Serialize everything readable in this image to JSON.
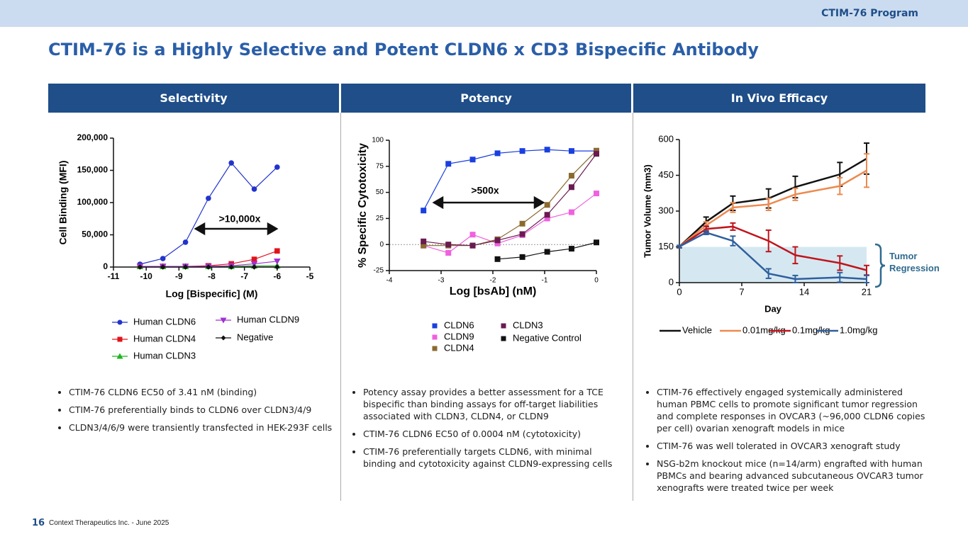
{
  "header": {
    "tag": "CTIM-76 Program",
    "title": "CTIM-76 is a Highly Selective and Potent CLDN6 x CD3 Bispecific Antibody"
  },
  "columns": [
    {
      "heading": "Selectivity",
      "bullets": [
        "CTIM-76 CLDN6 EC50 of 3.41 nM (binding)",
        "CTIM-76 preferentially binds to CLDN6 over CLDN3/4/9",
        "CLDN3/4/6/9 were transiently transfected in HEK-293F cells"
      ]
    },
    {
      "heading": "Potency",
      "bullets": [
        "Potency assay provides a better assessment for a TCE bispecific than binding assays for off-target liabilities associated with CLDN3, CLDN4, or CLDN9",
        "CTIM-76 CLDN6 EC50 of 0.0004 nM (cytotoxicity)",
        "CTIM-76 preferentially targets CLDN6, with minimal binding and cytotoxicity against CLDN9-expressing cells"
      ]
    },
    {
      "heading": "In Vivo Efficacy",
      "bullets": [
        "CTIM-76 effectively engaged systemically administered human PBMC cells to promote significant tumor regression and complete responses in OVCAR3 (~96,000 CLDN6 copies per cell) ovarian xenograft models in mice",
        "CTIM-76 was well tolerated in OVCAR3 xenograft study",
        "NSG-b2m knockout mice (n=14/arm) engrafted with human PBMCs and bearing advanced subcutaneous OVCAR3 tumor xenografts were treated twice per week"
      ]
    }
  ],
  "footer": {
    "page": 16,
    "text": "Context Therapeutics Inc. -  June 2025"
  },
  "chart_data": [
    {
      "type": "scatter",
      "xlabel": "Log [Bispecific] (M)",
      "ylabel": "Cell Binding (MFI)",
      "annotation": ">10,000x",
      "x": [
        -10.19,
        -9.49,
        -8.8,
        -8.1,
        -7.4,
        -6.7,
        -6
      ],
      "xlim": [
        -11,
        -5
      ],
      "xticks": [
        -11,
        -10,
        -9,
        -8,
        -7,
        -6,
        -5
      ],
      "ylim": [
        0,
        200000
      ],
      "yticks": [
        0,
        {
          "value": 50000,
          "label": "50,000"
        },
        {
          "value": 100000,
          "label": "100,000"
        },
        {
          "value": 150000,
          "label": "150,000"
        },
        {
          "value": 200000,
          "label": "200,000"
        }
      ],
      "series": [
        {
          "name": "Human CLDN6",
          "color": "#2233cc",
          "marker": "circle",
          "values": [
            4400,
            13200,
            38500,
            106600,
            161500,
            120900,
            155000
          ]
        },
        {
          "name": "Human CLDN4",
          "color": "#e3121b",
          "marker": "square",
          "values": [
            1000,
            1000,
            1000,
            2000,
            5000,
            12000,
            25000
          ]
        },
        {
          "name": "Human CLDN3",
          "color": "#1fb51f",
          "marker": "triangle",
          "values": [
            1000,
            1000,
            1000,
            1000,
            1000,
            2000,
            2000
          ]
        },
        {
          "name": "Human CLDN9",
          "color": "#a030d0",
          "marker": "triangle-down",
          "values": [
            1000,
            1000,
            1000,
            1000,
            2000,
            5000,
            9000
          ]
        },
        {
          "name": "Negative",
          "color": "#111111",
          "marker": "diamond",
          "values": [
            0,
            0,
            0,
            0,
            0,
            0,
            0
          ]
        }
      ]
    },
    {
      "type": "scatter",
      "xlabel": "Log [bsAb] (nM)",
      "ylabel": "% Specific Cytotoxicity",
      "annotation": ">500x",
      "zero_line": true,
      "x": [
        -3.34,
        -2.86,
        -2.39,
        -1.91,
        -1.43,
        -0.95,
        -0.48,
        0
      ],
      "xlim": [
        -4,
        0
      ],
      "xticks": [
        -4,
        -3,
        -2,
        -1,
        0
      ],
      "ylim": [
        -25,
        100
      ],
      "yticks": [
        -25,
        0,
        25,
        50,
        75,
        100
      ],
      "series": [
        {
          "name": "CLDN6",
          "color": "#1a3fe0",
          "marker": "square",
          "values": [
            32.6,
            77.4,
            81.5,
            87.5,
            89.7,
            91,
            89.7,
            89.7
          ]
        },
        {
          "name": "CLDN9",
          "color": "#f060e0",
          "marker": "square",
          "values": [
            -1,
            -8,
            9.5,
            1,
            9,
            25,
            31,
            49
          ]
        },
        {
          "name": "CLDN4",
          "color": "#8b6a2e",
          "marker": "square",
          "values": [
            -1,
            -1,
            -1,
            5,
            20,
            38,
            66,
            90
          ]
        },
        {
          "name": "CLDN3",
          "color": "#6a1a50",
          "marker": "square",
          "values": [
            3,
            0,
            -1,
            4,
            10,
            28.5,
            55,
            87
          ]
        },
        {
          "name": "Negative Control",
          "color": "#111111",
          "marker": "square",
          "values": [
            null,
            null,
            null,
            -14,
            -12,
            -7,
            -4,
            2
          ]
        }
      ]
    },
    {
      "type": "line",
      "xlabel": "Day",
      "ylabel": "Tumor Volume (mm3)",
      "annotation": "Tumor Regression",
      "band": [
        0,
        150
      ],
      "x": [
        0,
        3,
        6,
        10,
        13,
        18,
        21
      ],
      "xlim": [
        0,
        21
      ],
      "xticks": [
        0,
        7,
        14,
        21
      ],
      "ylim": [
        0,
        600
      ],
      "yticks": [
        0,
        150,
        300,
        450,
        600
      ],
      "series": [
        {
          "name": "Vehicle",
          "color": "#111111",
          "values": [
            151,
            255,
            333,
            353,
            401,
            454,
            520
          ],
          "errors": [
            5,
            20,
            30,
            40,
            45,
            50,
            65
          ]
        },
        {
          "name": "0.01mg/kg",
          "color": "#ec8a4f",
          "values": [
            151,
            240,
            315,
            328,
            370,
            405,
            470
          ],
          "errors": [
            5,
            15,
            20,
            25,
            25,
            35,
            70
          ]
        },
        {
          "name": "0.1mg/kg",
          "color": "#c0141c",
          "values": [
            151,
            225,
            235,
            175,
            115,
            82,
            52
          ],
          "errors": [
            5,
            12,
            15,
            45,
            35,
            30,
            20
          ]
        },
        {
          "name": "1.0mg/kg",
          "color": "#2f5f9e",
          "values": [
            151,
            210,
            175,
            38,
            15,
            22,
            15
          ],
          "errors": [
            5,
            8,
            20,
            20,
            15,
            20,
            15
          ]
        }
      ]
    }
  ]
}
